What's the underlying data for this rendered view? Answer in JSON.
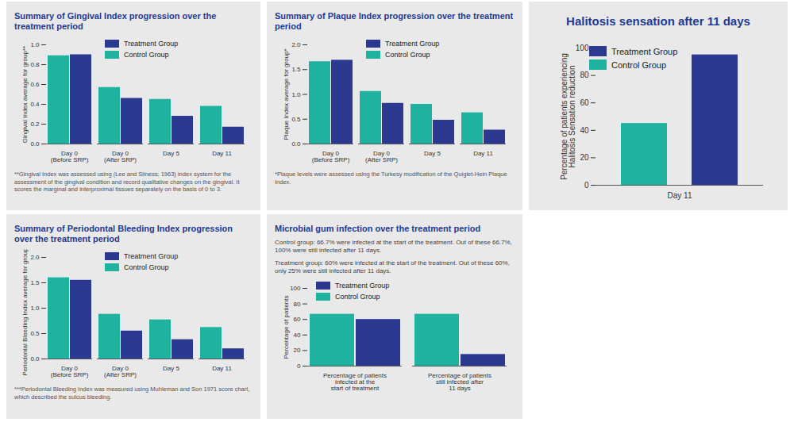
{
  "chart_data": [
    {
      "type": "bar",
      "title": "Summary of Gingival Index progression over the treatment period",
      "y_label": "Gingival Index average for group**",
      "categories": [
        "Day 0\n(Before SRP)",
        "Day 0\n(After SRP)",
        "Day 5",
        "Day 11"
      ],
      "series": [
        {
          "name": "Treatment Group",
          "color": "#2b3990",
          "values": [
            0.9,
            0.46,
            0.28,
            0.17
          ]
        },
        {
          "name": "Control Group",
          "color": "#1fb39f",
          "values": [
            0.89,
            0.57,
            0.45,
            0.38
          ]
        }
      ],
      "ylim": [
        0,
        1
      ],
      "yticks": [
        {
          "value": 0,
          "label": "0.0"
        },
        0.2,
        0.4,
        0.6,
        0.8,
        {
          "value": 1,
          "label": "1.0"
        }
      ],
      "legend": "upper center",
      "annotations": [
        "**Gingival Index was assessed using (Lee and Silness; 1963) index system for the assessment of the gingival condition and record qualitative changes on the gingival. It scores the marginal and interproximal tissues separately on the basis of 0 to 3."
      ]
    },
    {
      "type": "bar",
      "title": "Summary of Plaque Index progression over the treatment period",
      "y_label": "Plaque Index average for group*",
      "categories": [
        "Day 0\n(Before SRP)",
        "Day 0\n(After SRP)",
        "Day 5",
        "Day 11"
      ],
      "series": [
        {
          "name": "Treatment Group",
          "color": "#2b3990",
          "values": [
            1.69,
            0.82,
            0.48,
            0.28
          ]
        },
        {
          "name": "Control Group",
          "color": "#1fb39f",
          "values": [
            1.66,
            1.06,
            0.8,
            0.63
          ]
        }
      ],
      "ylim": [
        0,
        2
      ],
      "yticks": [
        {
          "value": 0,
          "label": "0.0"
        },
        0.5,
        {
          "value": 1,
          "label": "1.0"
        },
        1.5,
        {
          "value": 2,
          "label": "2.0"
        }
      ],
      "legend": "upper center",
      "annotations": [
        "*Plaque levels were assessed using the Turkesy modification of the Quiglet-Hein Plaque Index."
      ]
    },
    {
      "type": "bar",
      "title": "Halitosis sensation after 11 days",
      "y_label": "Percentage of patients experiencing\nHalitosis Sensation reduction",
      "categories": [
        "Day 11"
      ],
      "series": [
        {
          "name": "Treatment Group",
          "color": "#2b3990",
          "values": [
            95
          ]
        },
        {
          "name": "Control Group",
          "color": "#1fb39f",
          "values": [
            45
          ]
        }
      ],
      "ylim": [
        0,
        100
      ],
      "yticks": [
        0,
        20,
        40,
        60,
        80,
        100
      ],
      "legend": "upper left"
    },
    {
      "type": "bar",
      "title": "Summary of Periodontal Bleeding Index progression over the treatment period",
      "y_label": "Periodontal Bleeding Index average for group***",
      "categories": [
        "Day 0\n(Before SRP)",
        "Day 0\n(After SRP)",
        "Day 5",
        "Day 11"
      ],
      "series": [
        {
          "name": "Treatment Group",
          "color": "#2b3990",
          "values": [
            1.55,
            0.55,
            0.38,
            0.2
          ]
        },
        {
          "name": "Control Group",
          "color": "#1fb39f",
          "values": [
            1.6,
            0.88,
            0.77,
            0.62
          ]
        }
      ],
      "ylim": [
        0,
        2
      ],
      "yticks": [
        {
          "value": 0,
          "label": "0.0"
        },
        0.5,
        {
          "value": 1,
          "label": "1.0"
        },
        1.5,
        {
          "value": 2,
          "label": "2.0"
        }
      ],
      "legend": "upper center",
      "annotations": [
        "***Periodontal Bleeding Index was measured using Muhleman and Son 1971 score chart, which described the sulcus bleeding."
      ]
    },
    {
      "type": "bar",
      "title": "Microbial gum infection over the treatment period",
      "subtitle": [
        "Control group: 66.7% were infected at the start of the treatment. Out of these 66.7%, 100% were still infected after 11 days.",
        "Treatment group: 60% were infected at the start of the treatment. Out of these 60%, only 25% were still infected after 11 days."
      ],
      "y_label": "Percentage of patients",
      "categories": [
        "Percentage of patients\ninfected at the\nstart of treatment",
        "Percentage of patients\nstill infected after\n11 days"
      ],
      "series": [
        {
          "name": "Treatment Group",
          "color": "#2b3990",
          "values": [
            60,
            15
          ]
        },
        {
          "name": "Control Group",
          "color": "#1fb39f",
          "values": [
            66.7,
            66.7
          ]
        }
      ],
      "ylim": [
        0,
        100
      ],
      "yticks": [
        0,
        20,
        40,
        60,
        80,
        100
      ],
      "legend": "upper left"
    }
  ]
}
